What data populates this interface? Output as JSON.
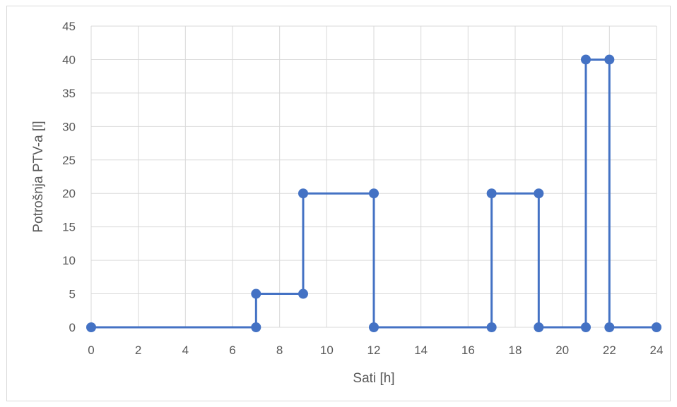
{
  "chart_data": {
    "type": "scatter",
    "title": "",
    "xlabel": "Sati [h]",
    "ylabel": "Potrošnja PTV-a [l]",
    "xlim": [
      0,
      24
    ],
    "ylim": [
      0,
      45
    ],
    "xticks": [
      0,
      2,
      4,
      6,
      8,
      10,
      12,
      14,
      16,
      18,
      20,
      22,
      24
    ],
    "yticks": [
      0,
      5,
      10,
      15,
      20,
      25,
      30,
      35,
      40,
      45
    ],
    "grid": true,
    "legend": "none",
    "series": [
      {
        "color": "#4472c4",
        "line": "straight-with-markers",
        "x": [
          0,
          7,
          7,
          9,
          9,
          12,
          12,
          17,
          17,
          19,
          19,
          21,
          21,
          22,
          22,
          24
        ],
        "y": [
          0,
          0,
          5,
          5,
          20,
          20,
          0,
          0,
          20,
          20,
          0,
          0,
          40,
          40,
          0,
          0
        ]
      }
    ]
  }
}
